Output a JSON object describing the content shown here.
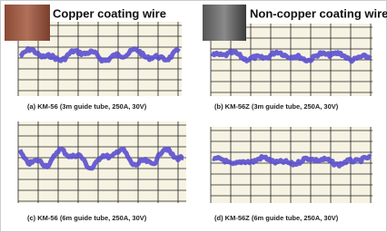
{
  "labels": {
    "copper": "Copper coating wire",
    "non_copper": "Non-copper coating wire"
  },
  "panels": [
    {
      "caption": "(a) KM-56 (3m guide tube, 250A, 30V)"
    },
    {
      "caption": "(b) KM-56Z (3m guide tube, 250A, 30V)"
    },
    {
      "caption": "(c) KM-56 (6m guide tube, 250A, 30V)"
    },
    {
      "caption": "(d) KM-56Z (6m guide tube, 250A, 30V)"
    }
  ]
}
